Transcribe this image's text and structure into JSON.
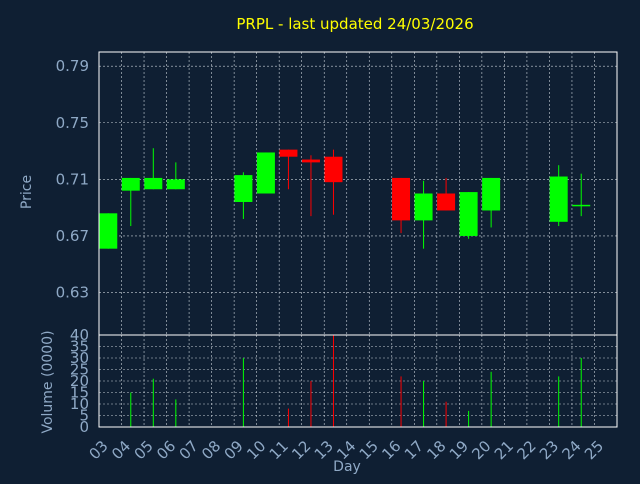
{
  "chart_data": {
    "type": "candlestick",
    "title": "PRPL - last updated 24/03/2026",
    "xlabel": "Day",
    "price_panel": {
      "ylabel": "Price",
      "ylim": [
        0.6,
        0.8
      ],
      "yticks": [
        "0.63",
        "0.67",
        "0.71",
        "0.75",
        "0.79"
      ],
      "grid": true
    },
    "volume_panel": {
      "ylabel": "Volume (0000)",
      "ylim": [
        0,
        40
      ],
      "yticks": [
        "0",
        "5",
        "10",
        "15",
        "20",
        "25",
        "30",
        "35",
        "40"
      ],
      "grid": true
    },
    "x_ticks": [
      "03",
      "04",
      "05",
      "06",
      "07",
      "08",
      "09",
      "10",
      "11",
      "12",
      "13",
      "14",
      "15",
      "16",
      "17",
      "18",
      "19",
      "20",
      "21",
      "22",
      "23",
      "24",
      "25"
    ],
    "up_color": "#00ff00",
    "down_color": "#ff0000",
    "candles": [
      {
        "day": "03",
        "open": 0.661,
        "close": 0.686,
        "high": 0.686,
        "low": 0.661,
        "volume": 0
      },
      {
        "day": "04",
        "open": 0.702,
        "close": 0.711,
        "high": 0.711,
        "low": 0.677,
        "volume": 15
      },
      {
        "day": "05",
        "open": 0.703,
        "close": 0.711,
        "high": 0.732,
        "low": 0.703,
        "volume": 21
      },
      {
        "day": "06",
        "open": 0.703,
        "close": 0.71,
        "high": 0.722,
        "low": 0.703,
        "volume": 12
      },
      {
        "day": "09",
        "open": 0.694,
        "close": 0.713,
        "high": 0.715,
        "low": 0.682,
        "volume": 30
      },
      {
        "day": "10",
        "open": 0.7,
        "close": 0.729,
        "high": 0.729,
        "low": 0.7,
        "volume": 0
      },
      {
        "day": "11",
        "open": 0.731,
        "close": 0.726,
        "high": 0.731,
        "low": 0.703,
        "volume": 8
      },
      {
        "day": "12",
        "open": 0.724,
        "close": 0.722,
        "high": 0.727,
        "low": 0.684,
        "volume": 20
      },
      {
        "day": "13",
        "open": 0.726,
        "close": 0.708,
        "high": 0.731,
        "low": 0.685,
        "volume": 40
      },
      {
        "day": "16",
        "open": 0.711,
        "close": 0.681,
        "high": 0.711,
        "low": 0.672,
        "volume": 22
      },
      {
        "day": "17",
        "open": 0.681,
        "close": 0.7,
        "high": 0.709,
        "low": 0.661,
        "volume": 20
      },
      {
        "day": "18",
        "open": 0.7,
        "close": 0.688,
        "high": 0.711,
        "low": 0.688,
        "volume": 11
      },
      {
        "day": "19",
        "open": 0.67,
        "close": 0.701,
        "high": 0.701,
        "low": 0.668,
        "volume": 7
      },
      {
        "day": "20",
        "open": 0.688,
        "close": 0.711,
        "high": 0.711,
        "low": 0.676,
        "volume": 24
      },
      {
        "day": "23",
        "open": 0.68,
        "close": 0.712,
        "high": 0.72,
        "low": 0.677,
        "volume": 22
      },
      {
        "day": "24",
        "open": 0.691,
        "close": 0.692,
        "high": 0.714,
        "low": 0.684,
        "volume": 30
      }
    ]
  }
}
